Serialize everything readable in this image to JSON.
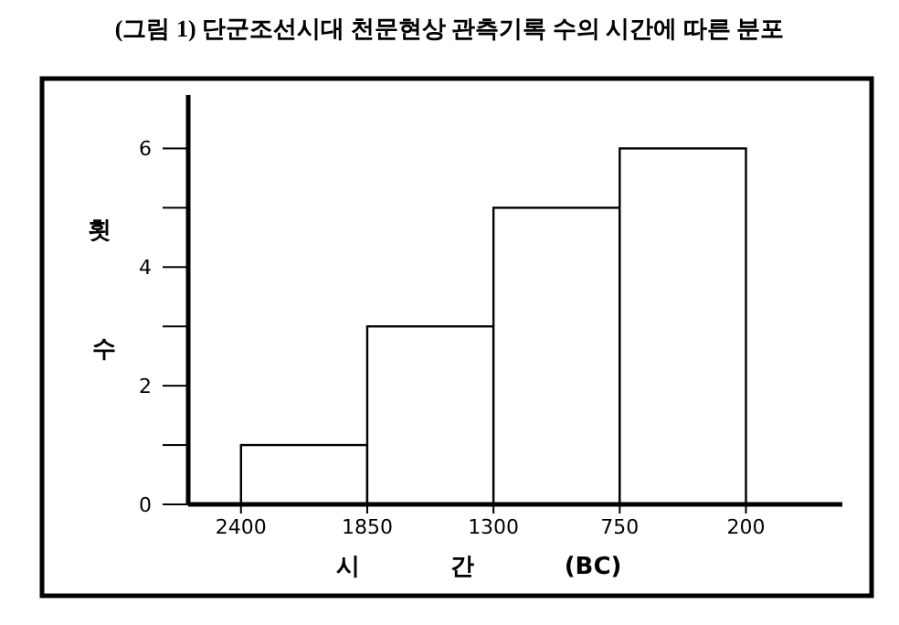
{
  "chart_data": {
    "type": "histogram",
    "title": "(그림 1) 단군조선시대 천문현상 관측기록 수의 시간에 따른 분포",
    "xlabel": "시 간 (BC)",
    "ylabel": "횟 수",
    "bins": [
      2400,
      1850,
      1300,
      750,
      200
    ],
    "values": [
      1,
      3,
      5,
      6
    ],
    "color": "#ffffff",
    "xlim": [
      2630,
      -220
    ],
    "xticks": [
      2400,
      1850,
      1300,
      750,
      200
    ],
    "ylim": [
      0,
      6.9
    ],
    "yticks": [
      0,
      {
        "value": 1,
        "label": null
      },
      2,
      {
        "value": 3,
        "label": null
      },
      4,
      {
        "value": 5,
        "label": null
      },
      6
    ],
    "grid": false
  }
}
